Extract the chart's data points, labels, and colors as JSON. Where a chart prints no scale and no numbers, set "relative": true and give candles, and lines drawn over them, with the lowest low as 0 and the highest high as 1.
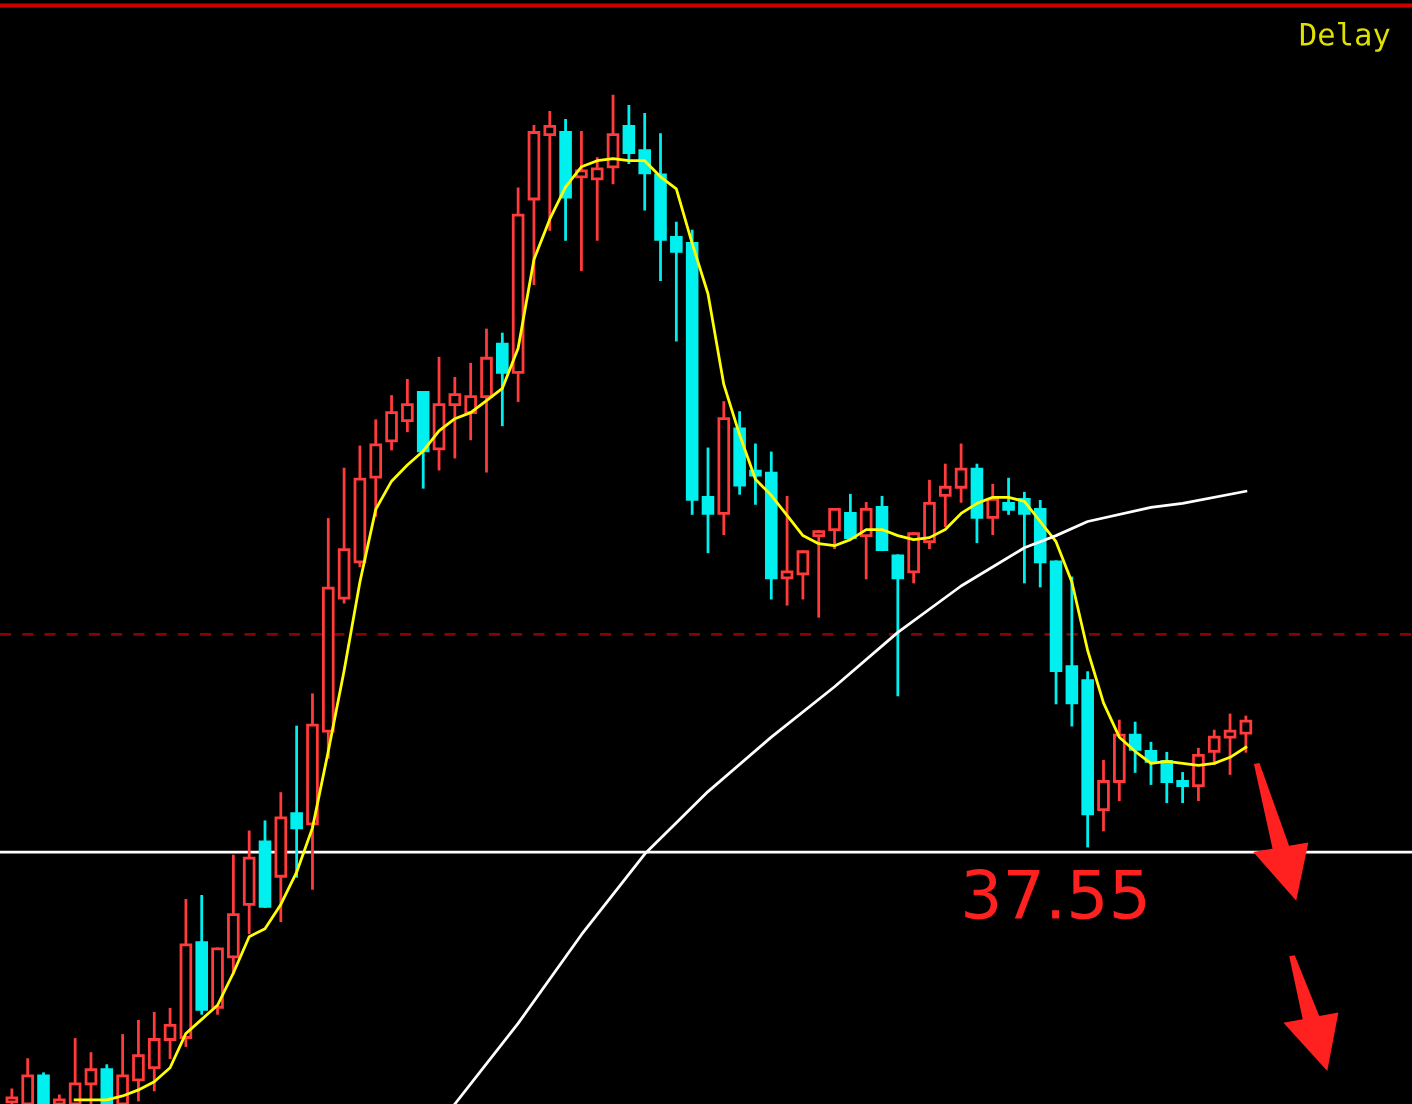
{
  "chart_data": {
    "type": "candlestick",
    "relative": true,
    "categories": [
      null,
      null,
      null,
      null,
      null,
      null,
      null,
      null,
      null,
      null,
      null,
      null,
      null,
      null,
      null,
      null,
      null,
      null,
      null,
      null,
      null,
      null,
      null,
      null,
      null,
      null,
      null,
      null,
      null,
      null,
      null,
      null,
      null,
      null,
      null,
      null,
      null,
      null,
      null,
      null,
      null,
      null,
      null,
      null,
      null,
      null,
      null,
      null,
      null,
      null,
      null,
      null,
      null,
      null,
      null,
      null,
      null,
      null,
      null,
      null,
      null,
      null,
      null,
      null,
      null,
      null,
      null,
      null,
      null,
      null,
      null,
      null,
      null,
      null,
      null,
      null,
      null,
      null,
      null
    ],
    "ohlc": [
      [
        0.002,
        0.014,
        0,
        0.006
      ],
      [
        0,
        0.044,
        0,
        0.028
      ],
      [
        0.028,
        0.03,
        0,
        0
      ],
      [
        0,
        0.008,
        0,
        0.004
      ],
      [
        0,
        0.064,
        0,
        0.02
      ],
      [
        0.02,
        0.05,
        0,
        0.034
      ],
      [
        0.034,
        0.038,
        0,
        0
      ],
      [
        0,
        0.068,
        0,
        0.028
      ],
      [
        0.024,
        0.082,
        0.004,
        0.048
      ],
      [
        0.036,
        0.09,
        0.014,
        0.064
      ],
      [
        0.064,
        0.094,
        0.046,
        0.078
      ],
      [
        0.066,
        0.202,
        0.058,
        0.158
      ],
      [
        0.16,
        0.206,
        0.09,
        0.094
      ],
      [
        0.096,
        0.154,
        0.09,
        0.154
      ],
      [
        0.146,
        0.246,
        0.13,
        0.188
      ],
      [
        0.198,
        0.27,
        0.17,
        0.244
      ],
      [
        0.26,
        0.28,
        0.196,
        0.196
      ],
      [
        0.226,
        0.308,
        0.182,
        0.284
      ],
      [
        0.288,
        0.374,
        0.226,
        0.274
      ],
      [
        0.278,
        0.406,
        0.214,
        0.376
      ],
      [
        0.37,
        0.58,
        0.344,
        0.512
      ],
      [
        0.502,
        0.63,
        0.498,
        0.55
      ],
      [
        0.538,
        0.652,
        0.534,
        0.62
      ],
      [
        0.622,
        0.678,
        0.584,
        0.654
      ],
      [
        0.658,
        0.702,
        0.65,
        0.686
      ],
      [
        0.678,
        0.718,
        0.668,
        0.694
      ],
      [
        0.706,
        0.706,
        0.612,
        0.648
      ],
      [
        0.65,
        0.74,
        0.63,
        0.694
      ],
      [
        0.694,
        0.72,
        0.642,
        0.704
      ],
      [
        0.686,
        0.734,
        0.66,
        0.702
      ],
      [
        0.702,
        0.768,
        0.628,
        0.74
      ],
      [
        0.754,
        0.764,
        0.674,
        0.726
      ],
      [
        0.726,
        0.908,
        0.698,
        0.882
      ],
      [
        0.898,
        0.97,
        0.814,
        0.964
      ],
      [
        0.962,
        0.984,
        0.868,
        0.97
      ],
      [
        0.964,
        0.976,
        0.858,
        0.9
      ],
      [
        0.92,
        0.964,
        0.828,
        0.926
      ],
      [
        0.918,
        0.938,
        0.858,
        0.928
      ],
      [
        0.93,
        1,
        0.914,
        0.962
      ],
      [
        0.97,
        0.99,
        0.934,
        0.944
      ],
      [
        0.946,
        0.982,
        0.888,
        0.924
      ],
      [
        0.922,
        0.962,
        0.818,
        0.858
      ],
      [
        0.86,
        0.874,
        0.758,
        0.846
      ],
      [
        0.854,
        0.866,
        0.586,
        0.6
      ],
      [
        0.602,
        0.65,
        0.548,
        0.586
      ],
      [
        0.586,
        0.696,
        0.566,
        0.68
      ],
      [
        0.67,
        0.686,
        0.606,
        0.614
      ],
      [
        0.628,
        0.654,
        0.596,
        0.624
      ],
      [
        0.626,
        0.646,
        0.502,
        0.522
      ],
      [
        0.522,
        0.602,
        0.496,
        0.528
      ],
      [
        0.526,
        0.548,
        0.502,
        0.548
      ],
      [
        0.564,
        0.568,
        0.484,
        0.568
      ],
      [
        0.57,
        0.59,
        0.552,
        0.59
      ],
      [
        0.586,
        0.604,
        0.562,
        0.562
      ],
      [
        0.564,
        0.596,
        0.522,
        0.59
      ],
      [
        0.592,
        0.602,
        0.55,
        0.55
      ],
      [
        0.544,
        0.544,
        0.406,
        0.522
      ],
      [
        0.528,
        0.566,
        0.518,
        0.566
      ],
      [
        0.558,
        0.618,
        0.552,
        0.596
      ],
      [
        0.604,
        0.634,
        0.574,
        0.612
      ],
      [
        0.612,
        0.654,
        0.598,
        0.63
      ],
      [
        0.63,
        0.634,
        0.558,
        0.582
      ],
      [
        0.582,
        0.614,
        0.566,
        0.6
      ],
      [
        0.596,
        0.62,
        0.586,
        0.59
      ],
      [
        0.6,
        0.606,
        0.518,
        0.586
      ],
      [
        0.59,
        0.598,
        0.514,
        0.538
      ],
      [
        0.538,
        0.538,
        0.398,
        0.43
      ],
      [
        0.434,
        0.522,
        0.376,
        0.398
      ],
      [
        0.42,
        0.428,
        0.256,
        0.288
      ],
      [
        0.292,
        0.34,
        0.272,
        0.32
      ],
      [
        0.32,
        0.38,
        0.302,
        0.366
      ],
      [
        0.366,
        0.378,
        0.33,
        0.352
      ],
      [
        0.35,
        0.358,
        0.318,
        0.34
      ],
      [
        0.34,
        0.348,
        0.3,
        0.32
      ],
      [
        0.32,
        0.328,
        0.3,
        0.316
      ],
      [
        0.316,
        0.352,
        0.302,
        0.346
      ],
      [
        0.35,
        0.37,
        0.338,
        0.364
      ],
      [
        0.364,
        0.386,
        0.328,
        0.37
      ],
      [
        0.368,
        0.384,
        0.35,
        0.38
      ]
    ],
    "series": [
      {
        "type": "line",
        "color": "#ffff00",
        "values": [
          null,
          null,
          null,
          null,
          0.004,
          0.004,
          0.004,
          0.008,
          0.014,
          0.022,
          0.036,
          0.07,
          0.084,
          0.098,
          0.13,
          0.166,
          0.174,
          0.198,
          0.23,
          0.274,
          0.35,
          0.43,
          0.518,
          0.59,
          0.618,
          0.634,
          0.648,
          0.668,
          0.68,
          0.686,
          0.698,
          0.71,
          0.75,
          0.838,
          0.878,
          0.91,
          0.93,
          0.936,
          0.938,
          0.936,
          0.936,
          0.92,
          0.908,
          0.854,
          0.804,
          0.714,
          0.664,
          0.62,
          0.604,
          0.584,
          0.564,
          0.556,
          0.554,
          0.56,
          0.57,
          0.57,
          0.564,
          0.56,
          0.562,
          0.57,
          0.586,
          0.596,
          0.602,
          0.602,
          0.598,
          0.578,
          0.558,
          0.518,
          0.45,
          0.398,
          0.364,
          0.35,
          0.338,
          0.34,
          0.338,
          0.336,
          0.338,
          0.344,
          0.354
        ]
      },
      {
        "type": "line",
        "color": "#ffffff",
        "values": [
          null,
          null,
          null,
          null,
          null,
          null,
          null,
          null,
          null,
          null,
          null,
          null,
          null,
          null,
          null,
          null,
          null,
          null,
          null,
          null,
          null,
          null,
          null,
          null,
          null,
          null,
          null,
          null,
          0,
          null,
          null,
          null,
          0.08,
          null,
          null,
          null,
          0.168,
          null,
          null,
          null,
          0.248,
          null,
          null,
          null,
          0.31,
          null,
          null,
          null,
          0.364,
          null,
          null,
          null,
          0.414,
          null,
          null,
          null,
          0.468,
          null,
          null,
          null,
          0.514,
          null,
          null,
          null,
          0.552,
          null,
          0.564,
          null,
          0.578,
          null,
          null,
          null,
          0.592,
          null,
          0.596,
          null,
          null,
          null,
          0.608
        ]
      }
    ],
    "ref_lines": [
      {
        "axis": "y",
        "value": 0.25,
        "color": "#ffffff",
        "line_style": "solid"
      },
      {
        "axis": "y",
        "value": 0.466,
        "color": "#8b0000",
        "line_style": "dashed"
      }
    ],
    "annotations": [
      "Delay",
      "37.55"
    ]
  }
}
